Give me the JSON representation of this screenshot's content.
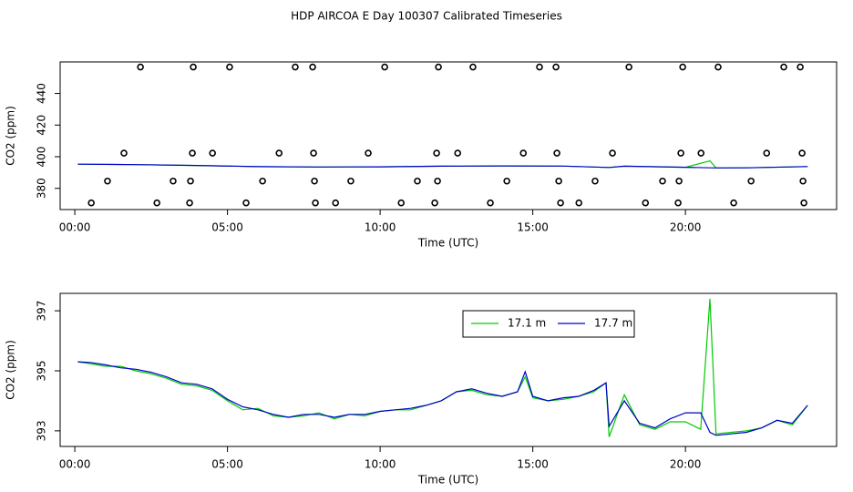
{
  "chart_data": [
    {
      "type": "line",
      "title": "HDP AIRCOA E  Day 100307  Calibrated Timeseries",
      "xlabel": "Time (UTC)",
      "ylabel": "CO2 (ppm)",
      "xlim": [
        -0.48,
        24.95
      ],
      "xticks": [
        {
          "value": 0,
          "label": "00:00"
        },
        {
          "value": 5,
          "label": "05:00"
        },
        {
          "value": 10,
          "label": "10:00"
        },
        {
          "value": 15,
          "label": "15:00"
        },
        {
          "value": 20,
          "label": "20:00"
        }
      ],
      "ylim": [
        366.6,
        459.9
      ],
      "yticks": [
        380,
        400,
        420,
        440
      ],
      "series": [
        {
          "style": "points",
          "color": "#000000",
          "x": [
            2.15,
            3.88,
            5.07,
            7.22,
            7.79,
            10.15,
            11.91,
            13.04,
            15.22,
            15.76,
            18.15,
            19.91,
            21.07,
            23.22,
            23.76,
            1.61,
            3.85,
            4.51,
            6.69,
            7.82,
            9.61,
            11.85,
            12.54,
            14.69,
            15.79,
            17.61,
            19.85,
            20.51,
            22.66,
            23.82,
            1.07,
            3.22,
            3.79,
            6.15,
            7.85,
            9.04,
            11.22,
            11.88,
            14.15,
            15.85,
            17.04,
            19.25,
            19.79,
            22.15,
            23.85,
            0.54,
            2.69,
            3.76,
            5.61,
            7.88,
            8.54,
            10.69,
            11.79,
            13.61,
            15.91,
            16.51,
            18.69,
            19.76,
            21.58,
            23.88
          ],
          "values": [
            456.7,
            456.7,
            456.7,
            456.7,
            456.7,
            456.7,
            456.7,
            456.7,
            456.7,
            456.7,
            456.7,
            456.7,
            456.7,
            456.7,
            456.7,
            402.3,
            402.3,
            402.3,
            402.3,
            402.3,
            402.3,
            402.3,
            402.3,
            402.3,
            402.3,
            402.3,
            402.3,
            402.3,
            402.3,
            402.3,
            384.6,
            384.6,
            384.6,
            384.6,
            384.6,
            384.6,
            384.6,
            384.6,
            384.6,
            384.6,
            384.6,
            384.6,
            384.6,
            384.6,
            384.6,
            370.8,
            370.8,
            370.8,
            370.8,
            370.8,
            370.8,
            370.8,
            370.8,
            370.8,
            370.8,
            370.8,
            370.8,
            370.8,
            370.8,
            370.8
          ]
        },
        {
          "color": "#00cc00",
          "x": [
            0.1,
            2,
            4,
            6,
            8,
            10,
            12,
            14,
            16,
            17.5,
            18,
            20,
            20.8,
            21,
            22,
            24
          ],
          "values": [
            395.3,
            395.0,
            394.5,
            393.7,
            393.5,
            393.6,
            394.0,
            394.2,
            394.1,
            393.2,
            394.0,
            393.3,
            397.4,
            392.9,
            393.0,
            393.8
          ]
        },
        {
          "color": "#0000cc",
          "x": [
            0.1,
            2,
            4,
            6,
            8,
            10,
            12,
            14,
            16,
            17.5,
            18,
            20,
            20.8,
            21,
            22,
            24
          ],
          "values": [
            395.3,
            395.0,
            394.5,
            393.7,
            393.5,
            393.6,
            394.0,
            394.2,
            394.1,
            393.2,
            394.0,
            393.3,
            393.0,
            392.9,
            393.0,
            393.8
          ]
        }
      ]
    },
    {
      "type": "line",
      "xlabel": "Time (UTC)",
      "ylabel": "CO2 (ppm)",
      "legend": "top",
      "xlim": [
        -0.48,
        24.95
      ],
      "xticks": [
        {
          "value": 0,
          "label": "00:00"
        },
        {
          "value": 5,
          "label": "05:00"
        },
        {
          "value": 10,
          "label": "10:00"
        },
        {
          "value": 15,
          "label": "15:00"
        },
        {
          "value": 20,
          "label": "20:00"
        }
      ],
      "ylim": [
        392.48,
        397.58
      ],
      "yticks": [
        393,
        395,
        397
      ],
      "series": [
        {
          "name": "17.1 m",
          "color": "#00cc00",
          "x": [
            0.1,
            0.5,
            1,
            1.5,
            2,
            2.5,
            3,
            3.5,
            4,
            4.5,
            5,
            5.5,
            6,
            6.5,
            7,
            7.5,
            8,
            8.5,
            9,
            9.5,
            10,
            10.5,
            11,
            11.5,
            12,
            12.5,
            13,
            13.5,
            14,
            14.5,
            14.75,
            15,
            15.5,
            16,
            16.5,
            17,
            17.4,
            17.5,
            18,
            18.5,
            19,
            19.5,
            20,
            20.5,
            20.8,
            21,
            21.5,
            22,
            22.5,
            23,
            23.5,
            24
          ],
          "values": [
            395.3,
            395.24,
            395.15,
            395.15,
            395.0,
            394.9,
            394.75,
            394.55,
            394.5,
            394.35,
            394.0,
            393.7,
            393.75,
            393.5,
            393.45,
            393.5,
            393.6,
            393.4,
            393.55,
            393.5,
            393.65,
            393.7,
            393.7,
            393.85,
            394.0,
            394.3,
            394.35,
            394.2,
            394.15,
            394.3,
            394.8,
            394.1,
            394.0,
            394.05,
            394.15,
            394.3,
            394.6,
            392.8,
            394.2,
            393.2,
            393.05,
            393.3,
            393.3,
            393.05,
            397.4,
            392.9,
            392.95,
            393.0,
            393.1,
            393.35,
            393.2,
            393.85
          ]
        },
        {
          "name": "17.7 m",
          "color": "#0000cc",
          "x": [
            0.1,
            0.5,
            1,
            1.5,
            2,
            2.5,
            3,
            3.5,
            4,
            4.5,
            5,
            5.5,
            6,
            6.5,
            7,
            7.5,
            8,
            8.5,
            9,
            9.5,
            10,
            10.5,
            11,
            11.5,
            12,
            12.5,
            13,
            13.5,
            14,
            14.5,
            14.75,
            15,
            15.5,
            16,
            16.5,
            17,
            17.4,
            17.5,
            18,
            18.5,
            19,
            19.5,
            20,
            20.5,
            20.8,
            21,
            21.5,
            22,
            22.5,
            23,
            23.5,
            24
          ],
          "values": [
            395.3,
            395.28,
            395.2,
            395.1,
            395.05,
            394.95,
            394.8,
            394.6,
            394.55,
            394.4,
            394.05,
            393.8,
            393.7,
            393.55,
            393.45,
            393.55,
            393.55,
            393.45,
            393.55,
            393.55,
            393.65,
            393.7,
            393.75,
            393.85,
            394.0,
            394.3,
            394.4,
            394.25,
            394.15,
            394.3,
            394.97,
            394.15,
            394.0,
            394.1,
            394.15,
            394.35,
            394.6,
            393.15,
            394.0,
            393.25,
            393.1,
            393.4,
            393.6,
            393.6,
            392.95,
            392.85,
            392.9,
            392.95,
            393.1,
            393.35,
            393.25,
            393.85
          ]
        }
      ]
    }
  ]
}
